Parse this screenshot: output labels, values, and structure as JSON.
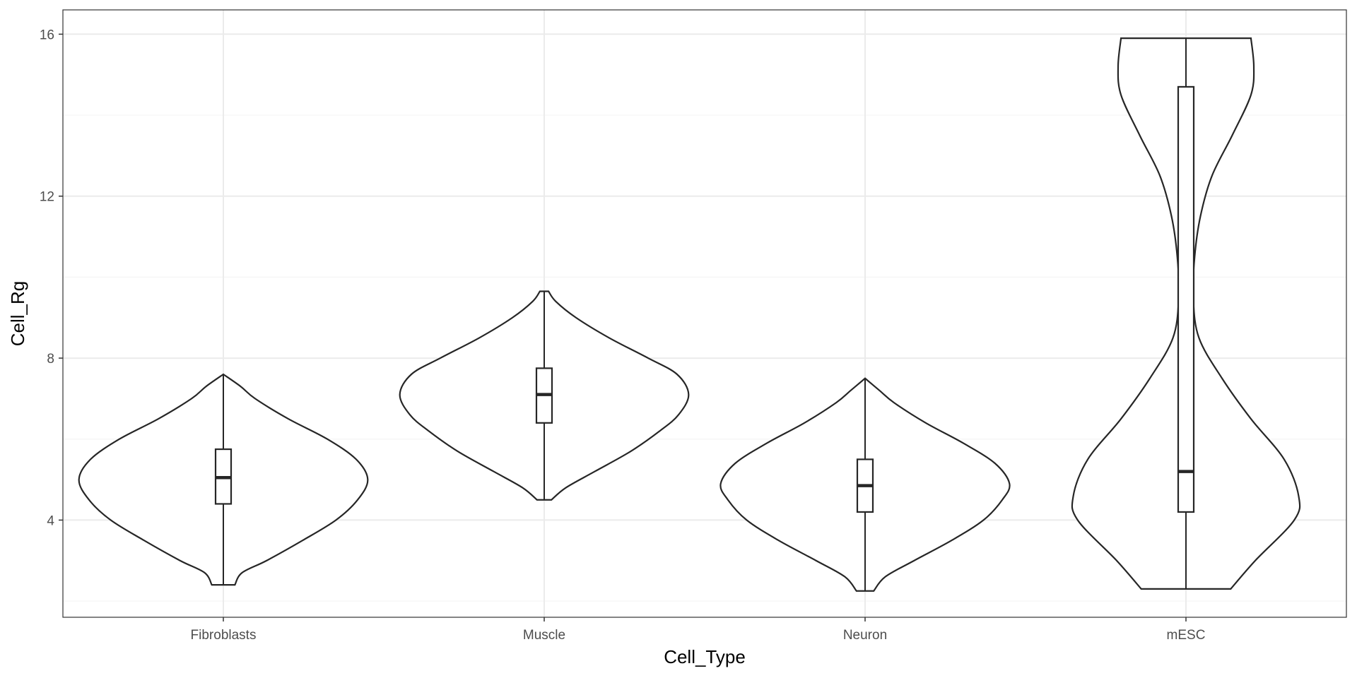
{
  "chart_data": {
    "type": "violin",
    "title": "",
    "xlabel": "Cell_Type",
    "ylabel": "Cell_Rg",
    "categories": [
      "Fibroblasts",
      "Muscle",
      "Neuron",
      "mESC"
    ],
    "ylim": [
      1.6,
      16.6
    ],
    "yticks": [
      4,
      8,
      12,
      16
    ],
    "grid": true,
    "theme": "bw",
    "colors": {
      "outline": "#262626",
      "grid_major": "#ebebeb",
      "grid_minor": "#f5f5f5",
      "panel_border": "#333333"
    },
    "series": [
      {
        "category": "Fibroblasts",
        "min": 2.4,
        "q1": 4.4,
        "median": 5.05,
        "q3": 5.75,
        "max": 7.6,
        "density": [
          [
            2.4,
            0.08
          ],
          [
            2.7,
            0.13
          ],
          [
            3.0,
            0.3
          ],
          [
            3.5,
            0.55
          ],
          [
            4.0,
            0.78
          ],
          [
            4.5,
            0.93
          ],
          [
            5.0,
            1.0
          ],
          [
            5.5,
            0.92
          ],
          [
            6.0,
            0.72
          ],
          [
            6.5,
            0.45
          ],
          [
            7.0,
            0.22
          ],
          [
            7.3,
            0.12
          ],
          [
            7.6,
            0.0
          ]
        ]
      },
      {
        "category": "Muscle",
        "min": 4.5,
        "q1": 6.4,
        "median": 7.1,
        "q3": 7.75,
        "max": 9.65,
        "density": [
          [
            4.5,
            0.05
          ],
          [
            4.8,
            0.15
          ],
          [
            5.2,
            0.35
          ],
          [
            5.7,
            0.6
          ],
          [
            6.2,
            0.8
          ],
          [
            6.6,
            0.93
          ],
          [
            7.1,
            1.0
          ],
          [
            7.6,
            0.92
          ],
          [
            8.0,
            0.72
          ],
          [
            8.5,
            0.45
          ],
          [
            9.0,
            0.22
          ],
          [
            9.4,
            0.08
          ],
          [
            9.65,
            0.03
          ]
        ]
      },
      {
        "category": "Neuron",
        "min": 2.25,
        "q1": 4.2,
        "median": 4.85,
        "q3": 5.5,
        "max": 7.5,
        "density": [
          [
            2.25,
            0.06
          ],
          [
            2.6,
            0.14
          ],
          [
            3.0,
            0.34
          ],
          [
            3.5,
            0.6
          ],
          [
            4.0,
            0.82
          ],
          [
            4.5,
            0.95
          ],
          [
            4.9,
            1.0
          ],
          [
            5.4,
            0.9
          ],
          [
            5.9,
            0.68
          ],
          [
            6.4,
            0.42
          ],
          [
            6.9,
            0.2
          ],
          [
            7.2,
            0.1
          ],
          [
            7.5,
            0.0
          ]
        ]
      },
      {
        "category": "mESC",
        "min": 2.3,
        "q1": 4.2,
        "median": 5.2,
        "q3": 14.7,
        "max": 15.9,
        "density": [
          [
            2.3,
            0.31
          ],
          [
            3.0,
            0.48
          ],
          [
            4.0,
            0.75
          ],
          [
            4.6,
            0.78
          ],
          [
            5.5,
            0.68
          ],
          [
            6.5,
            0.45
          ],
          [
            7.5,
            0.25
          ],
          [
            8.5,
            0.09
          ],
          [
            9.5,
            0.05
          ],
          [
            10.5,
            0.06
          ],
          [
            11.5,
            0.1
          ],
          [
            12.5,
            0.18
          ],
          [
            13.5,
            0.32
          ],
          [
            14.5,
            0.45
          ],
          [
            15.2,
            0.47
          ],
          [
            15.9,
            0.45
          ]
        ]
      }
    ]
  }
}
